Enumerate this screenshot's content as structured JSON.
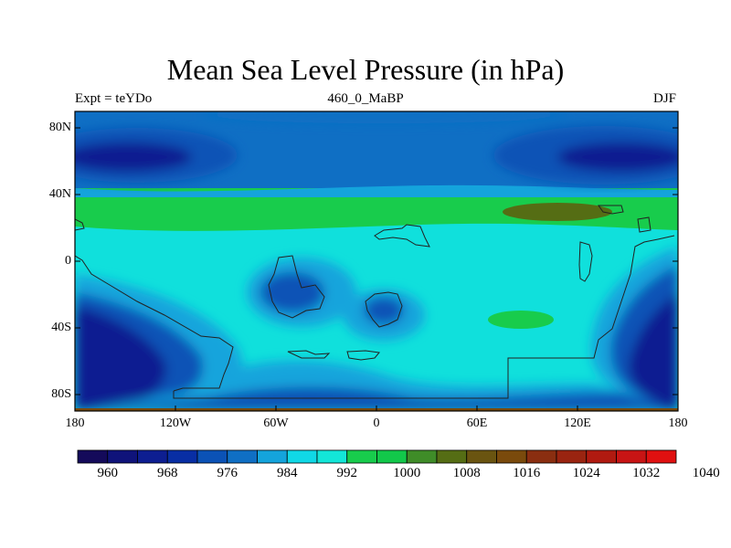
{
  "title": "Mean Sea Level Pressure (in hPa)",
  "left_label": "Expt = teYDo",
  "center_label": "460_0_MaBP",
  "right_label": "DJF",
  "lat_ticks": [
    "80N",
    "40N",
    "0",
    "40S",
    "80S"
  ],
  "lon_ticks": [
    "180",
    "120W",
    "60W",
    "0",
    "60E",
    "120E",
    "180"
  ],
  "colorbar": {
    "labels": [
      "960",
      "968",
      "976",
      "984",
      "992",
      "1000",
      "1008",
      "1016",
      "1024",
      "1032",
      "1040"
    ],
    "colors": [
      "#140a5a",
      "#0f137a",
      "#0d1e91",
      "#082ea4",
      "#0b52b6",
      "#0f6fc4",
      "#14a4dc",
      "#10d8e6",
      "#13e6d8",
      "#18cc4c",
      "#12c84a",
      "#3f8c28",
      "#556d14",
      "#6a5410",
      "#7a4a0c",
      "#8a2e10",
      "#9a2410",
      "#b01a10",
      "#c81414",
      "#e01010"
    ]
  },
  "colors": {
    "deep_low": "#0d1e91",
    "low": "#0b52b6",
    "mid": "#13e6d8",
    "high": "#18cc4c",
    "very_high": "#556d14"
  }
}
